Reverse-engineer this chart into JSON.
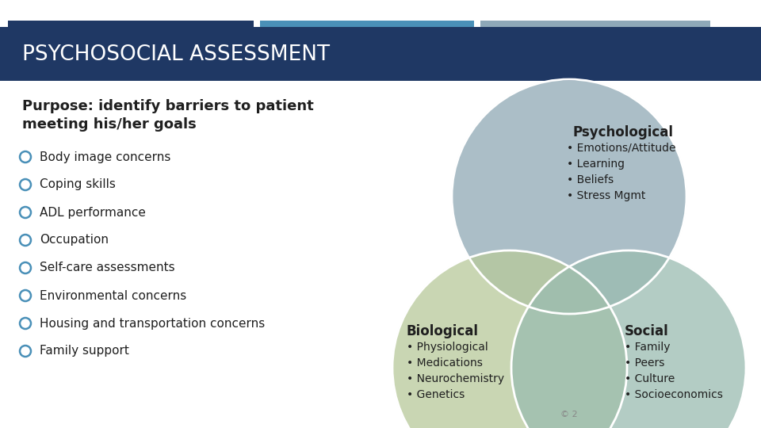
{
  "title": "PSYCHOSOCIAL ASSESSMENT",
  "title_color": "#FFFFFF",
  "header_bg_color": "#1F3864",
  "bar1_color": "#1F3864",
  "bar2_color": "#4A90B8",
  "bar3_color": "#8EA8B8",
  "purpose_title": "Purpose: identify barriers to patient\nmeeting his/her goals",
  "bullet_items": [
    "Body image concerns",
    "Coping skills",
    "ADL performance",
    "Occupation",
    "Self-care assessments",
    "Environmental concerns",
    "Housing and transportation concerns",
    "Family support"
  ],
  "bullet_color": "#4A90B8",
  "circle_psych_color": "#8FA8B5",
  "circle_bio_color": "#B8C99A",
  "circle_social_color": "#9ABCB0",
  "psych_label": "Psychological",
  "psych_items": [
    "Emotions/Attitude",
    "Learning",
    "Beliefs",
    "Stress Mgmt"
  ],
  "bio_label": "Biological",
  "bio_items": [
    "Physiological",
    "Medications",
    "Neurochemistry",
    "Genetics"
  ],
  "social_label": "Social",
  "social_items": [
    "Family",
    "Peers",
    "Culture",
    "Socioeconomics"
  ],
  "footer_text": "© 2",
  "bg_color": "#FFFFFF",
  "text_color": "#1F1F1F"
}
